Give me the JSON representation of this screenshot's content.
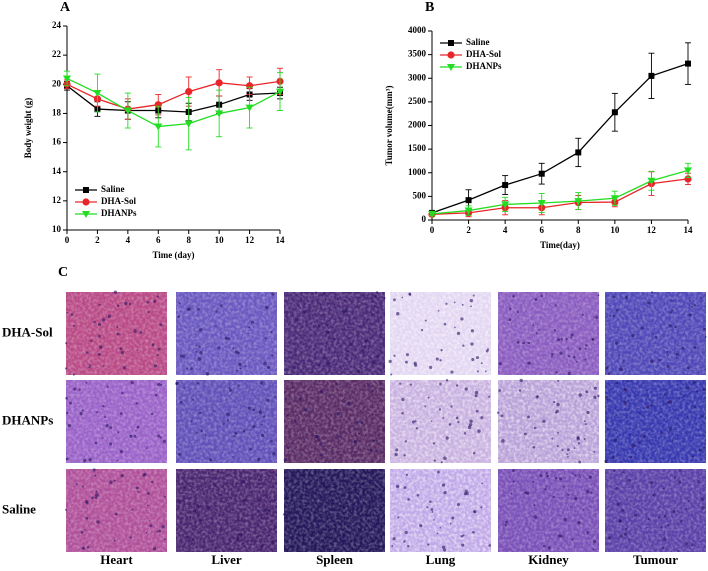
{
  "chart_data": [
    {
      "type": "line",
      "panel_label": "A",
      "x_label": "Time (day)",
      "y_label": "Body weight (g)",
      "x": [
        0,
        2,
        4,
        6,
        8,
        10,
        12,
        14
      ],
      "xlim": [
        0,
        14
      ],
      "xticks": [
        0,
        2,
        4,
        6,
        8,
        10,
        12,
        14
      ],
      "ylim": [
        10,
        24
      ],
      "yticks": [
        10,
        12,
        14,
        16,
        18,
        20,
        22,
        24
      ],
      "legend": "lower left",
      "series": [
        {
          "name": "Saline",
          "color": "#000000",
          "marker": "square",
          "values": [
            19.9,
            18.3,
            18.2,
            18.2,
            18.1,
            18.6,
            19.3,
            19.4
          ],
          "errors": [
            0.3,
            0.5,
            0.6,
            0.5,
            0.6,
            0.6,
            0.4,
            0.4
          ]
        },
        {
          "name": "DHA-Sol",
          "color": "#e8262a",
          "marker": "circle",
          "values": [
            20.0,
            19.0,
            18.3,
            18.6,
            19.5,
            20.1,
            19.9,
            20.2
          ],
          "errors": [
            0.3,
            0.5,
            0.7,
            0.7,
            1.0,
            0.9,
            0.6,
            0.9
          ]
        },
        {
          "name": "DHANPs",
          "color": "#22dd22",
          "marker": "triangle-down",
          "values": [
            20.4,
            19.4,
            18.2,
            17.1,
            17.3,
            18.0,
            18.4,
            19.5
          ],
          "errors": [
            0.5,
            1.3,
            1.2,
            1.4,
            1.8,
            1.6,
            1.4,
            1.3
          ]
        }
      ]
    },
    {
      "type": "line",
      "panel_label": "B",
      "x_label": "Time(day)",
      "y_label": "Tumor volume(mm³)",
      "x": [
        0,
        2,
        4,
        6,
        8,
        10,
        12,
        14
      ],
      "xlim": [
        0,
        14
      ],
      "xticks": [
        0,
        2,
        4,
        6,
        8,
        10,
        12,
        14
      ],
      "ylim": [
        0,
        4000
      ],
      "yticks": [
        0,
        500,
        1000,
        1500,
        2000,
        2500,
        3000,
        3500,
        4000
      ],
      "legend": "upper left",
      "series": [
        {
          "name": "Saline",
          "color": "#000000",
          "marker": "square",
          "values": [
            150,
            420,
            740,
            980,
            1430,
            2280,
            3050,
            3310
          ],
          "errors": [
            50,
            220,
            200,
            220,
            300,
            400,
            480,
            440
          ]
        },
        {
          "name": "DHA-Sol",
          "color": "#e8262a",
          "marker": "circle",
          "values": [
            120,
            150,
            260,
            260,
            370,
            380,
            770,
            870
          ],
          "errors": [
            40,
            80,
            150,
            150,
            150,
            100,
            250,
            120
          ]
        },
        {
          "name": "DHANPs",
          "color": "#22dd22",
          "marker": "triangle-down",
          "values": [
            130,
            200,
            330,
            360,
            400,
            460,
            830,
            1050
          ],
          "errors": [
            40,
            100,
            150,
            200,
            180,
            150,
            200,
            150
          ]
        }
      ]
    }
  ],
  "histology": {
    "panel_label": "C",
    "rows": [
      "DHA-Sol",
      "DHANPs",
      "Saline"
    ],
    "columns": [
      "Heart",
      "Liver",
      "Spleen",
      "Lung",
      "Kidney",
      "Tumour"
    ]
  }
}
